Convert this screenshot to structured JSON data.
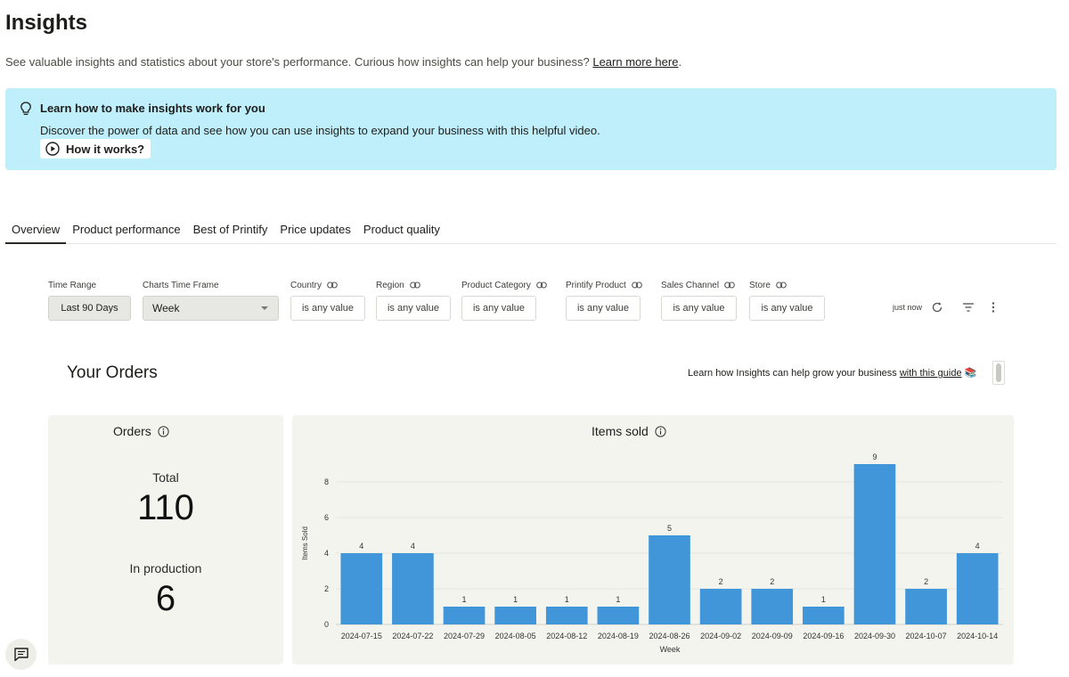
{
  "page": {
    "title": "Insights",
    "subtitle": "See valuable insights and statistics about your store's performance. Curious how insights can help your business? ",
    "subtitle_link": "Learn more here",
    "subtitle_end": "."
  },
  "banner": {
    "title": "Learn how to make insights work for you",
    "text": "Discover the power of data and see how you can use insights to expand your business with this helpful video.",
    "button": "How it works?",
    "background": "#bfeffb"
  },
  "tabs": [
    {
      "label": "Overview",
      "active": true
    },
    {
      "label": "Product performance",
      "active": false
    },
    {
      "label": "Best of Printify",
      "active": false
    },
    {
      "label": "Price updates",
      "active": false
    },
    {
      "label": "Product quality",
      "active": false
    }
  ],
  "filters": {
    "time_range": {
      "label": "Time Range",
      "value": "Last 90 Days"
    },
    "charts_time_frame": {
      "label": "Charts Time Frame",
      "value": "Week"
    },
    "country": {
      "label": "Country",
      "value": "is any value"
    },
    "region": {
      "label": "Region",
      "value": "is any value"
    },
    "product_category": {
      "label": "Product Category",
      "value": "is any value"
    },
    "printify_product": {
      "label": "Printify Product",
      "value": "is any value"
    },
    "sales_channel": {
      "label": "Sales Channel",
      "value": "is any value"
    },
    "store": {
      "label": "Store",
      "value": "is any value"
    },
    "updated": "just now"
  },
  "orders_section": {
    "title": "Your Orders",
    "guide_text": "Learn how Insights can help grow your business ",
    "guide_link": "with this guide",
    "guide_emoji": "📚"
  },
  "orders_card": {
    "title": "Orders",
    "total_label": "Total",
    "total_value": "110",
    "production_label": "In production",
    "production_value": "6"
  },
  "chart_data": {
    "type": "bar",
    "title": "Items sold",
    "xlabel": "Week",
    "ylabel": "Items Sold",
    "categories": [
      "2024-07-15",
      "2024-07-22",
      "2024-07-29",
      "2024-08-05",
      "2024-08-12",
      "2024-08-19",
      "2024-08-26",
      "2024-09-02",
      "2024-09-09",
      "2024-09-16",
      "2024-09-30",
      "2024-10-07",
      "2024-10-14"
    ],
    "values": [
      4,
      4,
      1,
      1,
      1,
      1,
      5,
      2,
      2,
      1,
      9,
      2,
      4
    ],
    "yticks": [
      0,
      2,
      4,
      6,
      8
    ],
    "ylim": [
      0,
      10
    ],
    "grid": true,
    "bar_color": "#4096d9",
    "data_labels": true
  }
}
